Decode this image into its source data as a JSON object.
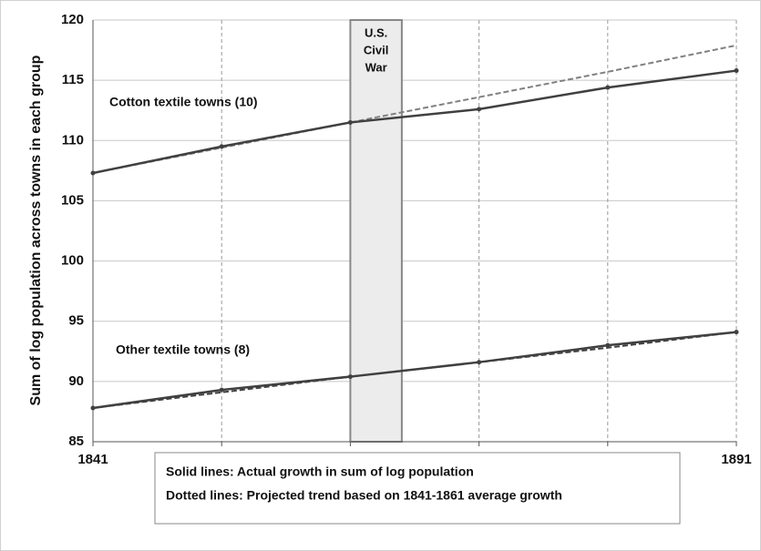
{
  "chart_data": {
    "type": "line",
    "ylabel": "Sum of log population across towns in each group",
    "x": [
      1841,
      1851,
      1861,
      1871,
      1881,
      1891
    ],
    "xlim": [
      1841,
      1891
    ],
    "xticks": [
      1841,
      1851,
      1861,
      1871,
      1881,
      1891
    ],
    "ylim": [
      85,
      120
    ],
    "yticks": [
      85,
      90,
      95,
      100,
      105,
      110,
      115,
      120
    ],
    "grid": true,
    "groups": [
      {
        "name": "Cotton textile towns (10)",
        "actual": {
          "color": "#404040",
          "values": [
            107.3,
            109.5,
            111.5,
            112.6,
            114.4,
            115.8
          ]
        },
        "projected": {
          "color": "#808080",
          "values": [
            107.3,
            109.4,
            111.5,
            113.6,
            115.7,
            117.9
          ]
        }
      },
      {
        "name": "Other textile towns (8)",
        "actual": {
          "color": "#404040",
          "values": [
            87.8,
            89.3,
            90.4,
            91.6,
            93.0,
            94.1
          ]
        },
        "projected": {
          "color": "#404040",
          "values": [
            87.8,
            89.1,
            90.4,
            91.6,
            92.8,
            94.1
          ]
        }
      }
    ],
    "shade": {
      "x": [
        1861,
        1865
      ],
      "label_lines": [
        "U.S.",
        "Civil",
        "War"
      ],
      "color": "#ececec"
    },
    "notes": [
      "Solid lines:  Actual growth in  sum of log population",
      "Dotted lines:  Projected trend based on 1841-1861 average growth"
    ]
  }
}
